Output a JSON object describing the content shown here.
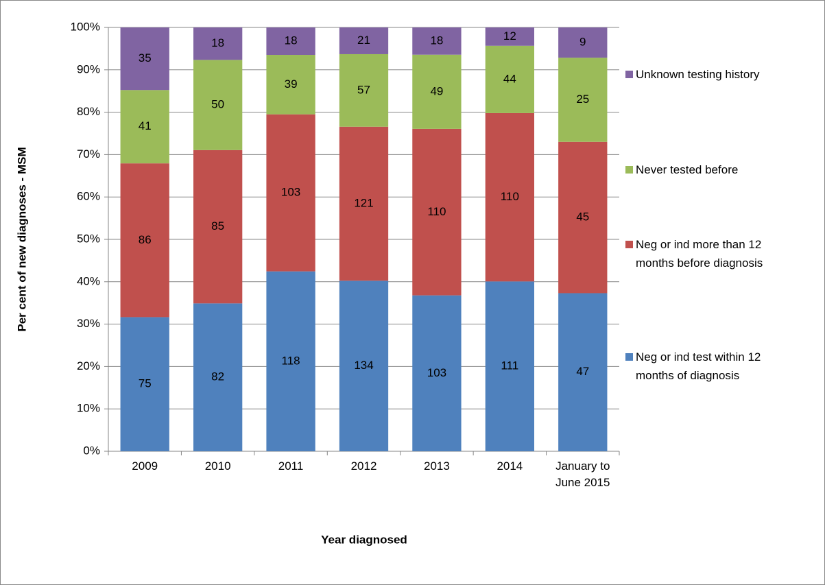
{
  "chart_data": {
    "type": "bar",
    "stack": "percent",
    "xlabel": "Year diagnosed",
    "ylabel": "Per cent of new diagnoses - MSM",
    "categories": [
      "2009",
      "2010",
      "2011",
      "2012",
      "2013",
      "2014",
      "January to June 2015"
    ],
    "series": [
      {
        "name": "Neg or ind test within 12 months of diagnosis",
        "color": "#4f81bd",
        "values": [
          75,
          82,
          118,
          134,
          103,
          111,
          47
        ]
      },
      {
        "name": "Neg or ind more than 12 months before diagnosis",
        "color": "#c0504d",
        "values": [
          86,
          85,
          103,
          121,
          110,
          110,
          45
        ]
      },
      {
        "name": "Never tested before",
        "color": "#9bbb59",
        "values": [
          41,
          50,
          39,
          57,
          49,
          44,
          25
        ]
      },
      {
        "name": "Unknown testing history",
        "color": "#8064a2",
        "values": [
          35,
          18,
          18,
          21,
          18,
          12,
          9
        ]
      }
    ],
    "ylim": [
      0,
      100
    ],
    "yticks": [
      {
        "value": 0,
        "label": "0%"
      },
      {
        "value": 10,
        "label": "10%"
      },
      {
        "value": 20,
        "label": "20%"
      },
      {
        "value": 30,
        "label": "30%"
      },
      {
        "value": 40,
        "label": "40%"
      },
      {
        "value": 50,
        "label": "50%"
      },
      {
        "value": 60,
        "label": "60%"
      },
      {
        "value": 70,
        "label": "70%"
      },
      {
        "value": 80,
        "label": "80%"
      },
      {
        "value": 90,
        "label": "90%"
      },
      {
        "value": 100,
        "label": "100%"
      }
    ],
    "grid": true,
    "legend": "right"
  }
}
